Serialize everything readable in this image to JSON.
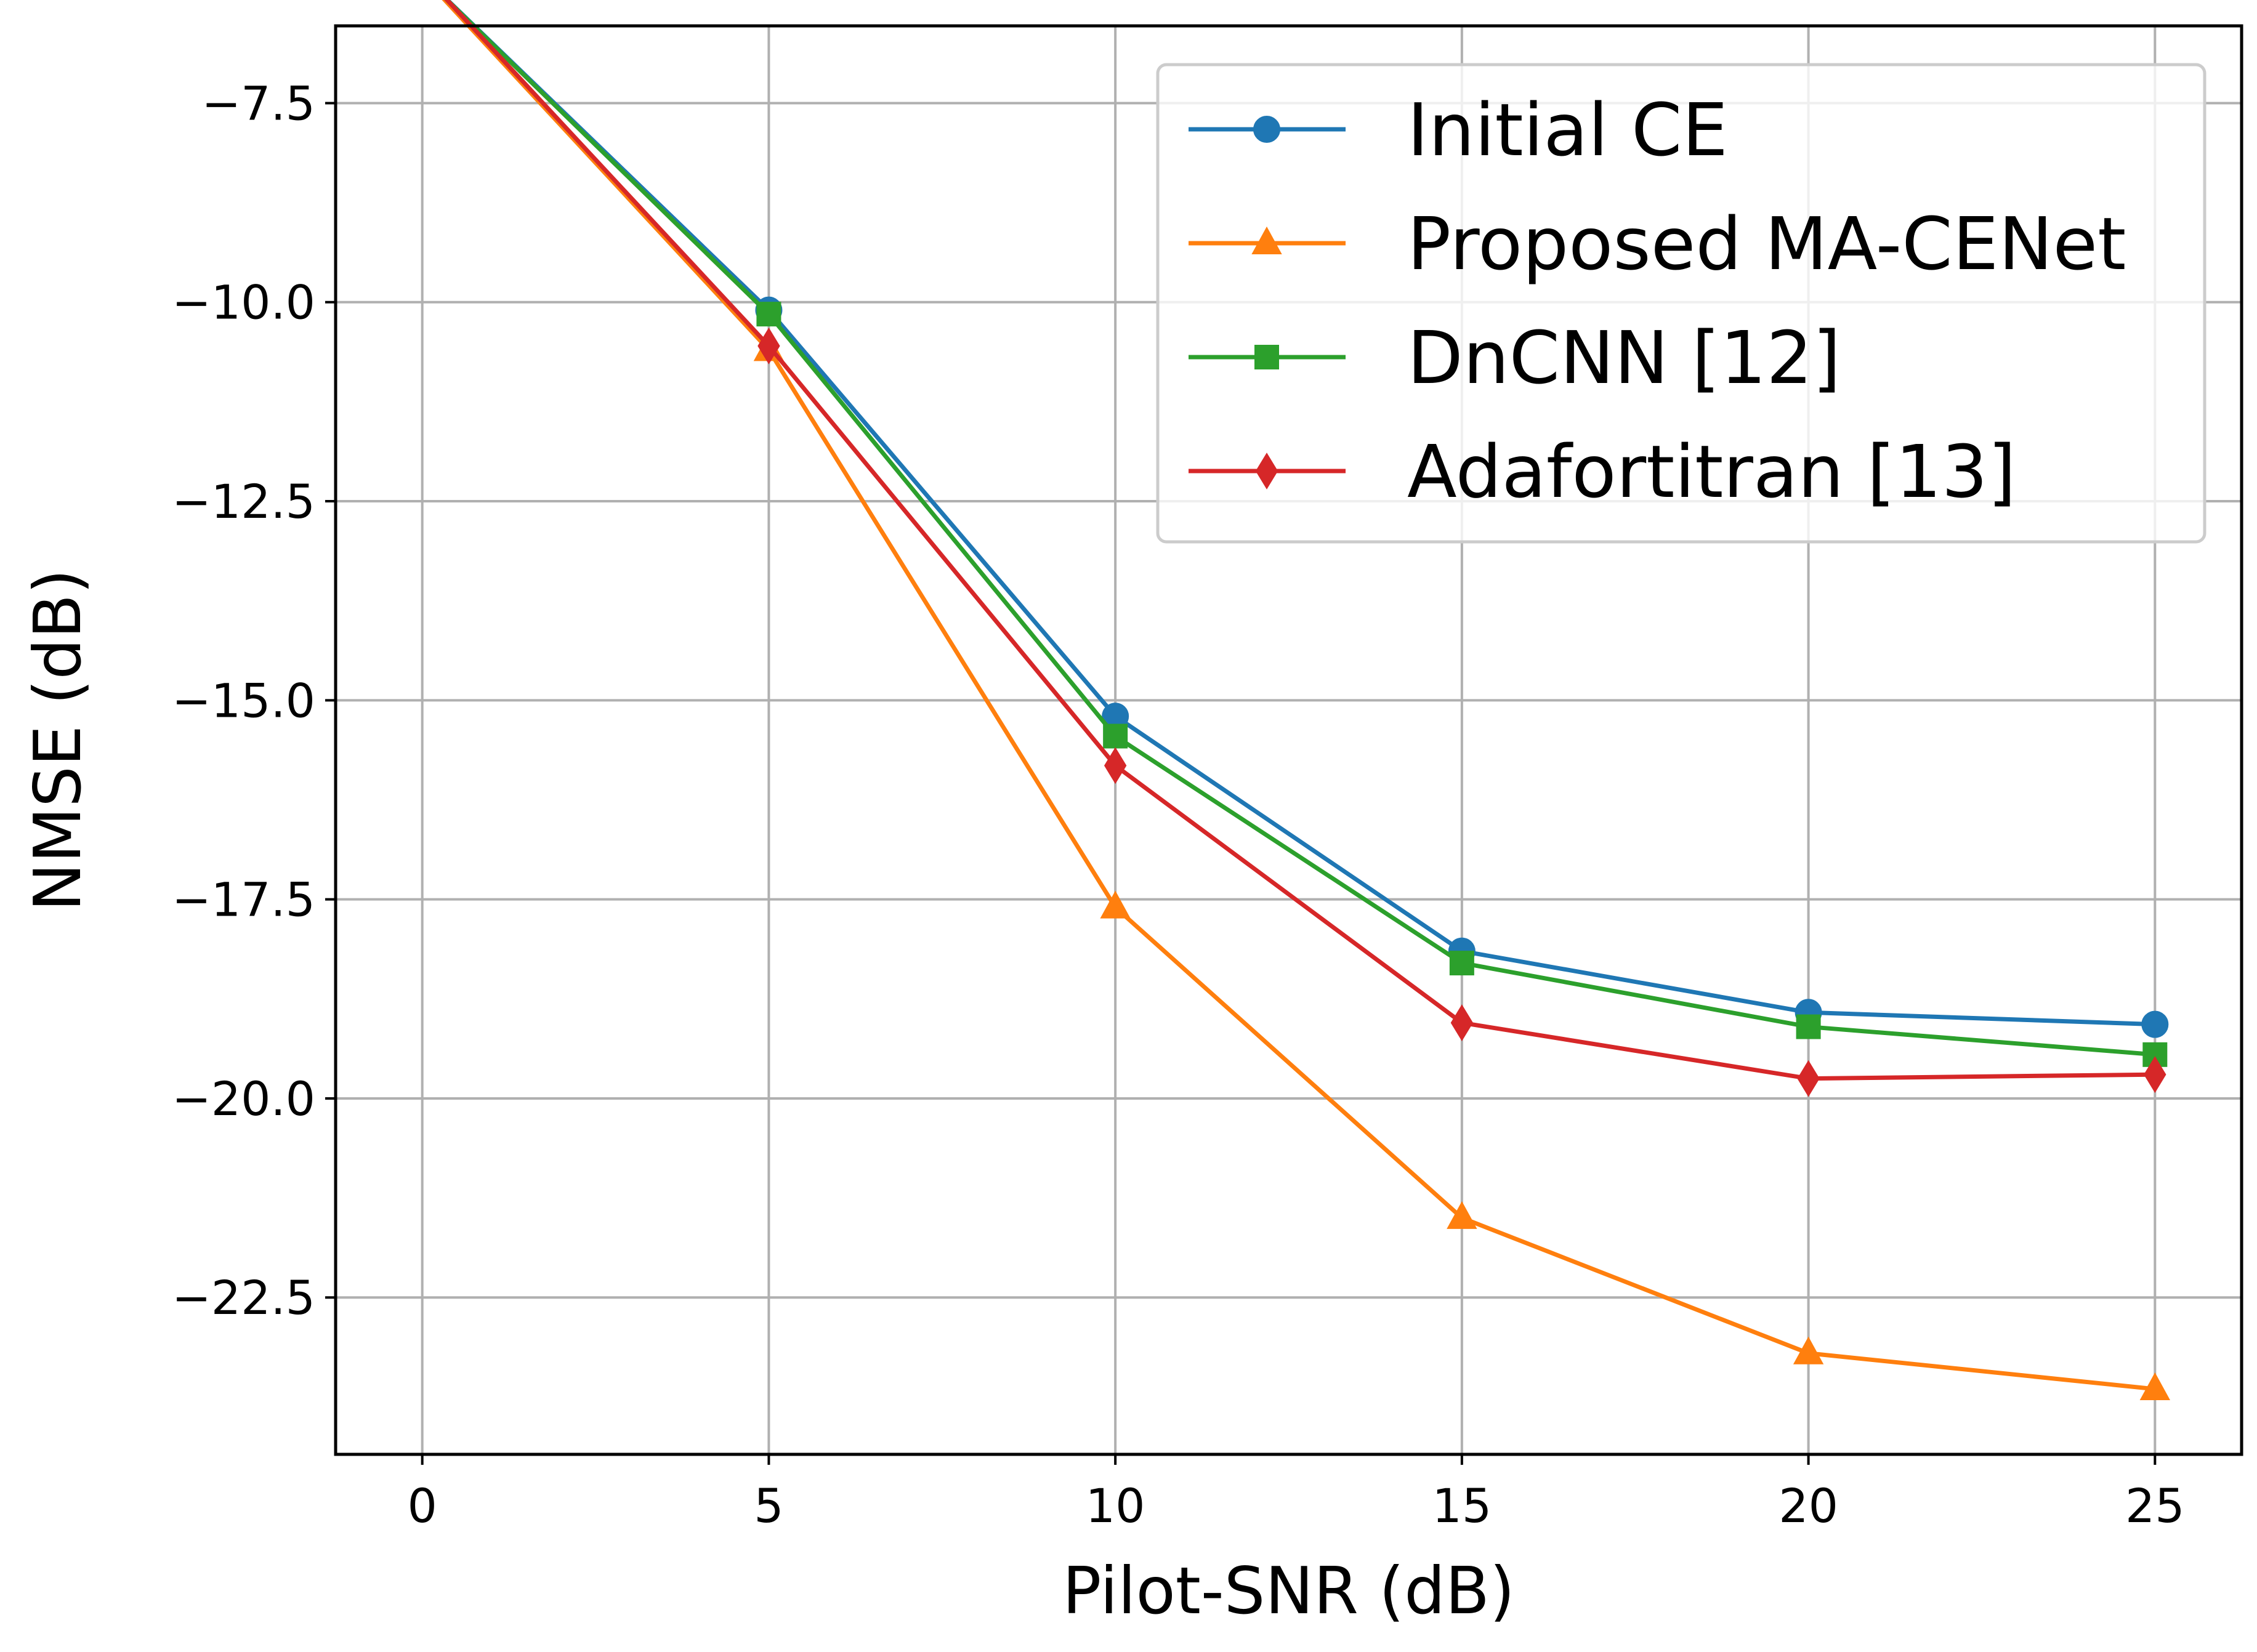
{
  "chart_data": {
    "type": "line",
    "title": "",
    "xlabel": "Pilot-SNR (dB)",
    "ylabel": "NMSE (dB)",
    "x": [
      0,
      5,
      10,
      15,
      20,
      25
    ],
    "xlim": [
      -1.25,
      26.25
    ],
    "ylim": [
      -24.47,
      -6.53
    ],
    "xticks": [
      0,
      5,
      10,
      15,
      20,
      25
    ],
    "yticks": [
      -7.5,
      -10.0,
      -12.5,
      -15.0,
      -17.5,
      -20.0,
      -22.5
    ],
    "xtick_labels": [
      "0",
      "5",
      "10",
      "15",
      "20",
      "25"
    ],
    "ytick_labels": [
      "−7.5",
      "−10.0",
      "−12.5",
      "−15.0",
      "−17.5",
      "−20.0",
      "−22.5"
    ],
    "grid": true,
    "legend_position": "upper right",
    "series": [
      {
        "name": "Initial CE",
        "color": "#1f77b4",
        "marker": "circle",
        "values": [
          -5.9,
          -10.1,
          -15.2,
          -18.15,
          -18.92,
          -19.07
        ]
      },
      {
        "name": "Proposed MA-CENet",
        "color": "#ff7f0e",
        "marker": "triangle",
        "values": [
          -5.9,
          -10.6,
          -17.6,
          -21.5,
          -23.2,
          -23.65
        ]
      },
      {
        "name": "DnCNN [12]",
        "color": "#2ca02c",
        "marker": "square",
        "values": [
          -5.9,
          -10.15,
          -15.45,
          -18.3,
          -19.1,
          -19.45
        ]
      },
      {
        "name": "Adafortitran [13]",
        "color": "#d62728",
        "marker": "diamond",
        "values": [
          -5.87,
          -10.55,
          -15.82,
          -19.05,
          -19.75,
          -19.7
        ]
      }
    ]
  }
}
